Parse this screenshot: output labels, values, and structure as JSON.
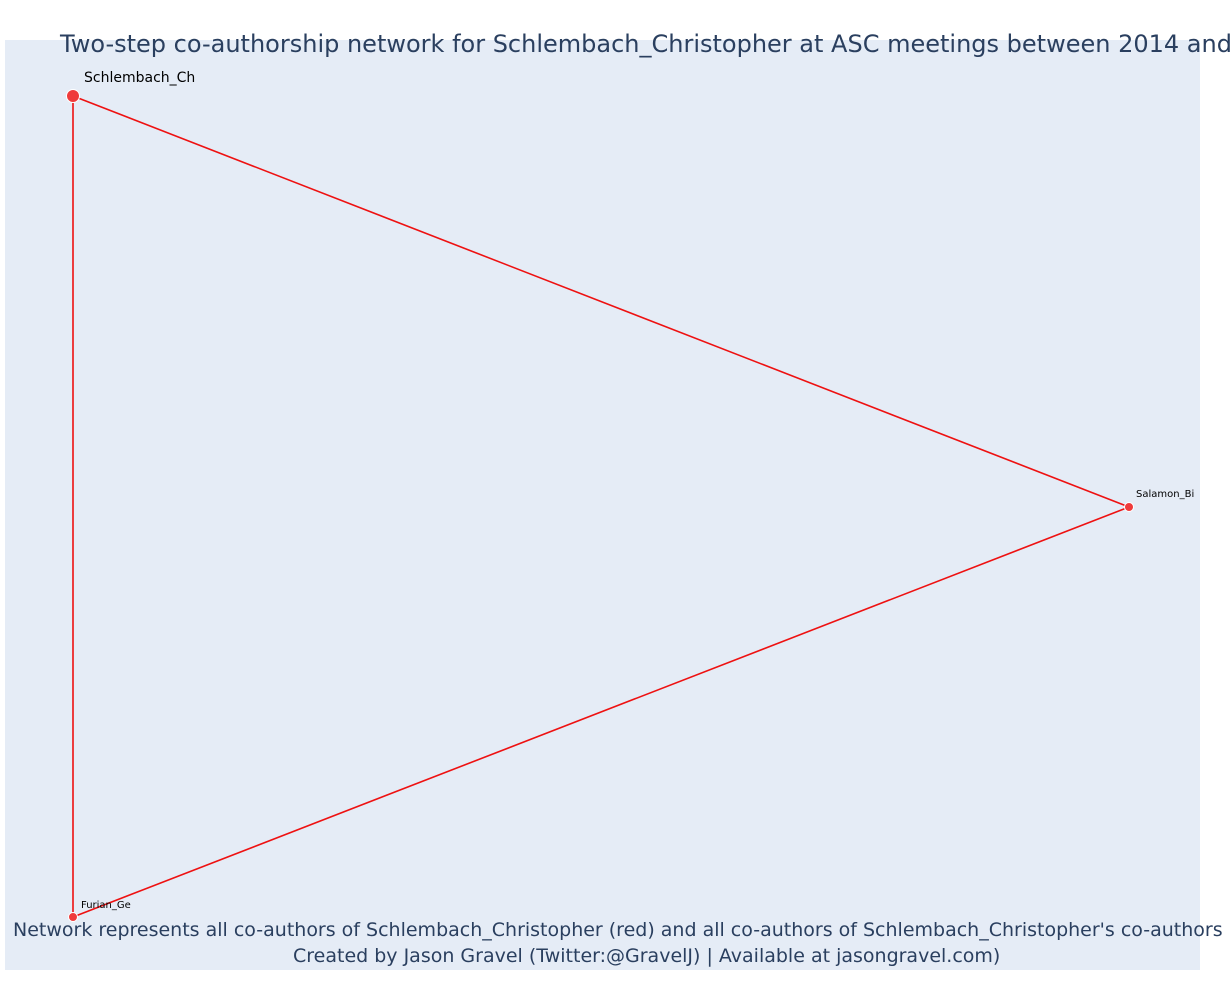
{
  "title": "Two-step co-authorship network for Schlembach_Christopher at ASC meetings between 2014 and",
  "captions": {
    "line1": "Network represents all co-authors of Schlembach_Christopher (red) and all co-authors of Schlembach_Christopher's co-authors",
    "line2": "Created by Jason Gravel (Twitter:@GravelJ) | Available at jasongravel.com)"
  },
  "colors": {
    "plot_background": "#e5ecf6",
    "edge": "#ee1111",
    "node": "#ef3b3b",
    "node_outline": "#ffffff",
    "text": "#2a3f5f"
  },
  "network": {
    "nodes": [
      {
        "id": "schlembach",
        "label": "Schlembach_Ch",
        "role": "focal"
      },
      {
        "id": "salamon",
        "label": "Salamon_Bi",
        "role": "co-author"
      },
      {
        "id": "furian",
        "label": "Furian_Ge",
        "role": "co-author"
      }
    ],
    "edges": [
      {
        "source": "schlembach",
        "target": "salamon"
      },
      {
        "source": "salamon",
        "target": "furian"
      },
      {
        "source": "furian",
        "target": "schlembach"
      }
    ]
  }
}
